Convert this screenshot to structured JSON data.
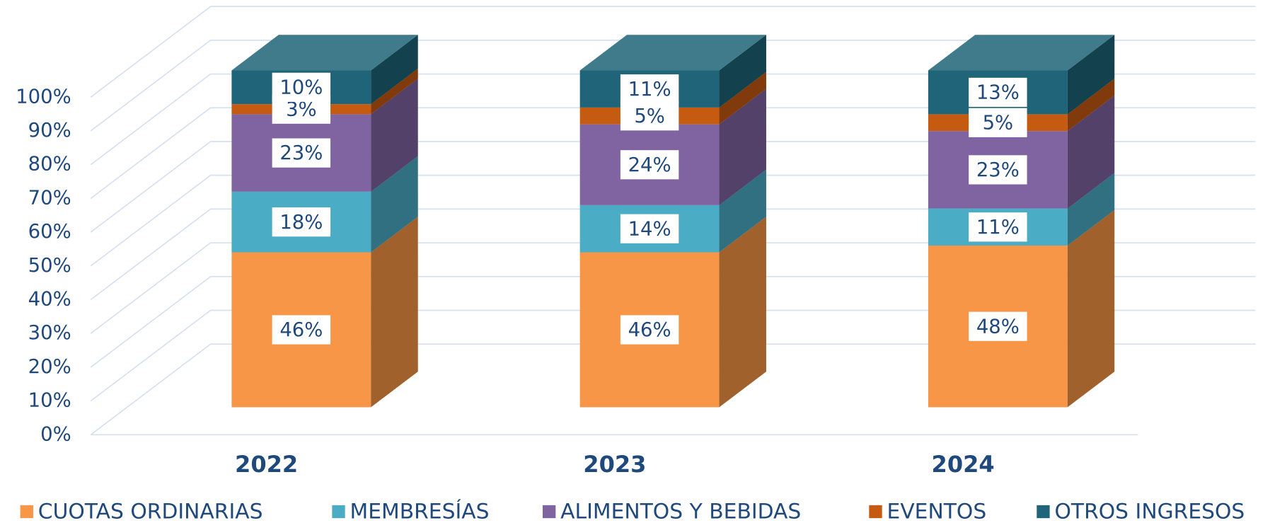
{
  "chart_data": {
    "type": "bar",
    "stacked": true,
    "legend": "bottom",
    "grid": true,
    "categories": [
      "2022",
      "2023",
      "2024"
    ],
    "series": [
      {
        "name": "CUOTAS ORDINARIAS",
        "color": "#f79646",
        "values": [
          46,
          46,
          48
        ],
        "value_labels": [
          "46%",
          "46%",
          "48%"
        ]
      },
      {
        "name": "MEMBRESÍAS",
        "color": "#4bacc6",
        "values": [
          18,
          14,
          11
        ],
        "value_labels": [
          "18%",
          "14%",
          "11%"
        ]
      },
      {
        "name": "ALIMENTOS Y BEBIDAS",
        "color": "#8064a2",
        "values": [
          23,
          24,
          23
        ],
        "value_labels": [
          "23%",
          "24%",
          "23%"
        ]
      },
      {
        "name": "EVENTOS",
        "color": "#c55a11",
        "values": [
          3,
          5,
          5
        ],
        "value_labels": [
          "3%",
          "5%",
          "5%"
        ]
      },
      {
        "name": "OTROS INGRESOS",
        "color": "#1f6478",
        "values": [
          10,
          11,
          13
        ],
        "value_labels": [
          "10%",
          "11%",
          "13%"
        ]
      }
    ],
    "ylim": [
      0,
      100
    ],
    "yticks": [
      {
        "value": 0,
        "label": "0%"
      },
      {
        "value": 10,
        "label": "10%"
      },
      {
        "value": 20,
        "label": "20%"
      },
      {
        "value": 30,
        "label": "30%"
      },
      {
        "value": 40,
        "label": "40%"
      },
      {
        "value": 50,
        "label": "50%"
      },
      {
        "value": 60,
        "label": "60%"
      },
      {
        "value": 70,
        "label": "70%"
      },
      {
        "value": 80,
        "label": "80%"
      },
      {
        "value": 90,
        "label": "90%"
      },
      {
        "value": 100,
        "label": "100%"
      }
    ]
  }
}
